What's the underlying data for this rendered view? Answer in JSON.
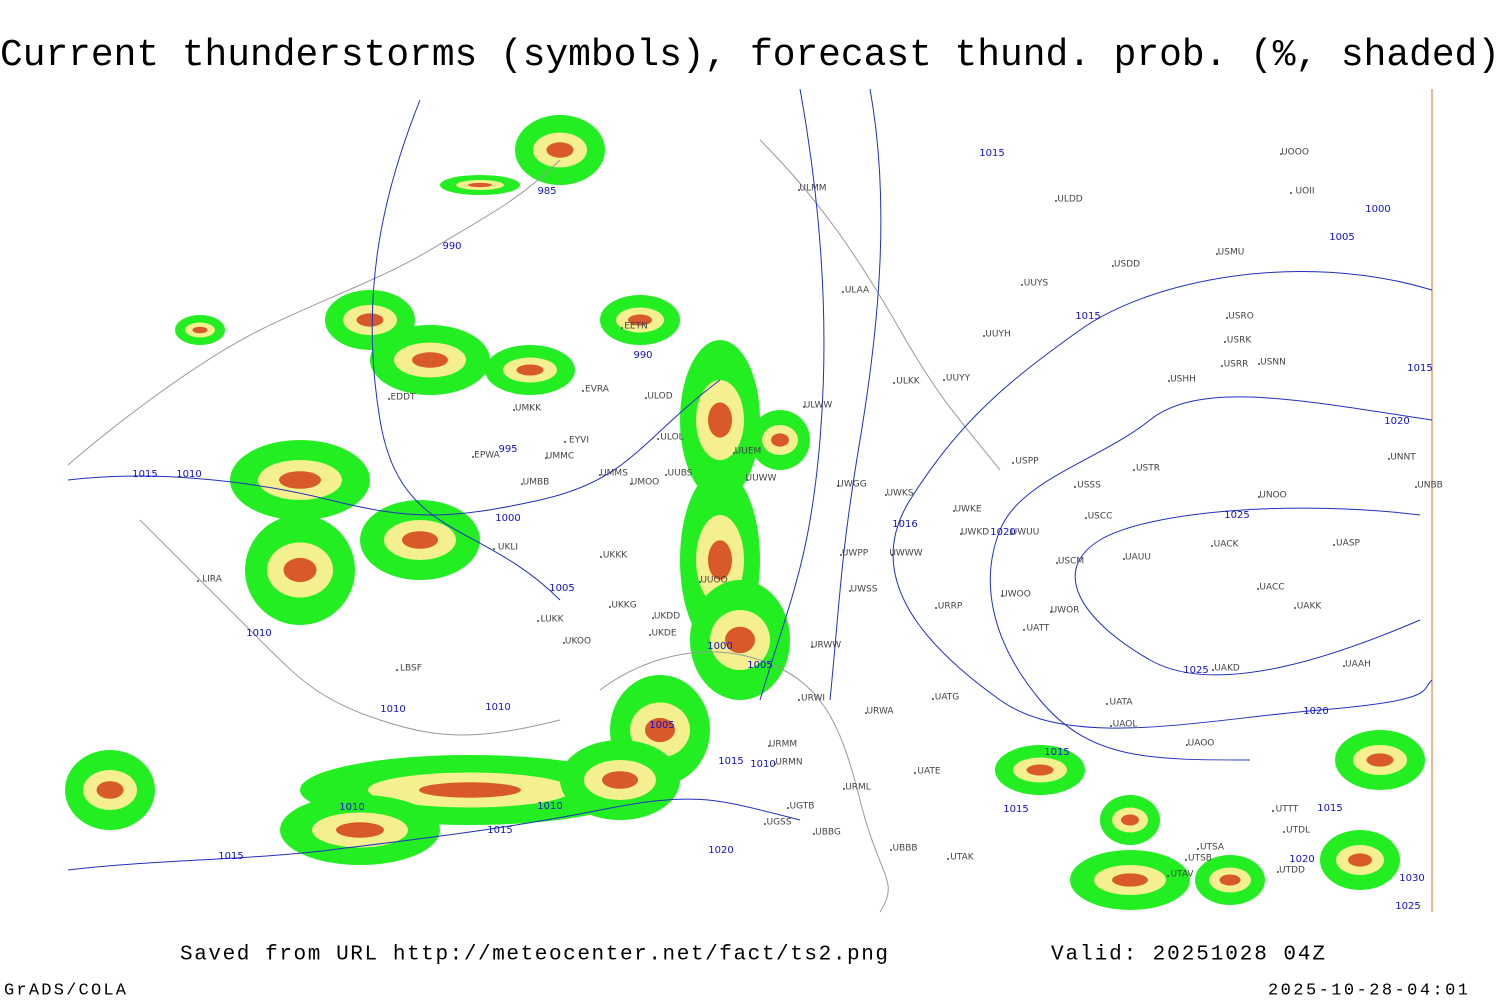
{
  "header": {
    "title": "Current thunderstorms (symbols), forecast thund. prob. (%, shaded)"
  },
  "map": {
    "isobar_labels": [
      "985",
      "990",
      "990",
      "995",
      "1000",
      "1005",
      "1010",
      "1015",
      "1010",
      "1010",
      "1010",
      "1000",
      "1005",
      "1005",
      "1015",
      "1010",
      "1010",
      "1010",
      "1015",
      "1015",
      "1020",
      "1015",
      "1000",
      "1005",
      "1015",
      "1015",
      "1020",
      "1025",
      "1020",
      "1016",
      "1025",
      "1020",
      "1015",
      "1015",
      "1015",
      "1020",
      "1030",
      "1025"
    ],
    "stations": [
      "EDDT",
      "EPWA",
      "UMMC",
      "EYVI",
      "UMBB",
      "UMMS",
      "UMOO",
      "UUBS",
      "ULOL",
      "ULOD",
      "EVRA",
      "EETN",
      "UMKK",
      "ULMM",
      "ULAA",
      "ULKK",
      "UUYY",
      "ULWW",
      "UUEM",
      "UUWW",
      "UWGG",
      "UWKS",
      "UWKE",
      "UWKD",
      "UWUU",
      "UWWW",
      "UWPP",
      "UWSS",
      "URRP",
      "URWA",
      "UUOO",
      "UKDD",
      "UKDE",
      "UKKG",
      "UKKK",
      "LUKK",
      "UKOO",
      "UKLI",
      "LBSF",
      "LIRA",
      "UGTB",
      "UGSS",
      "UBBB",
      "UBBG",
      "URML",
      "URMM",
      "URMN",
      "UATE",
      "UATG",
      "UTAK",
      "USCM",
      "USSS",
      "USTR",
      "USPP",
      "USCC",
      "UAUU",
      "UACK",
      "UASP",
      "UACC",
      "UAKK",
      "UNOO",
      "UWOR",
      "UATT",
      "UWOO",
      "UAKD",
      "UAAH",
      "UATA",
      "UAOL",
      "UAOO",
      "UTSA",
      "UTSB",
      "UTAV",
      "UTTT",
      "UTDL",
      "UTDD",
      "ULDD",
      "UUYS",
      "UUYH",
      "USDD",
      "USMU",
      "USRO",
      "USRK",
      "USRR",
      "USNN",
      "USHH",
      "UNNT",
      "UNBB",
      "UOOO",
      "UOII",
      "URWW",
      "URWI"
    ]
  },
  "footer": {
    "saved_from": "Saved from URL http://meteocenter.net/fact/ts2.png",
    "valid": "Valid: 20251028 04Z",
    "software": "GrADS/COLA",
    "timestamp": "2025-10-28-04:01"
  }
}
